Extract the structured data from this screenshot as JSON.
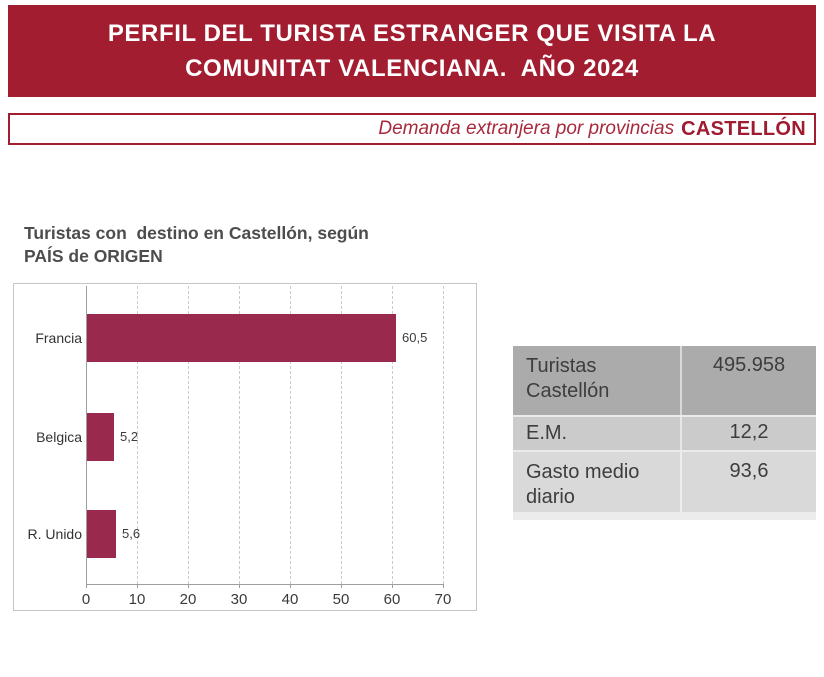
{
  "header": {
    "line1": "PERFIL DEL TURISTA ESTRANGER QUE VISITA LA",
    "line2": "COMUNITAT VALENCIANA.  AÑO 2024"
  },
  "subtitle": {
    "italic_text": "Demanda extranjera por provincias",
    "bold_text": "CASTELLÓN"
  },
  "chart": {
    "title": "Turistas con  destino en Castellón, según\nPAÍS de ORIGEN"
  },
  "chart_data": {
    "type": "bar",
    "orientation": "horizontal",
    "title": "Turistas con  destino en Castellón, según PAÍS de ORIGEN",
    "categories": [
      "Francia",
      "Belgica",
      "R. Unido"
    ],
    "values": [
      60.5,
      5.2,
      5.6
    ],
    "value_labels": [
      "60,5",
      "5,2",
      "5,6"
    ],
    "xlabel": "",
    "ylabel": "",
    "xlim": [
      0,
      70
    ],
    "xticks": [
      0,
      10,
      20,
      30,
      40,
      50,
      60,
      70
    ],
    "grid": "vertical-dashed",
    "legend": "none",
    "bar_color": "#9A2A4D"
  },
  "summary_table": {
    "rows": [
      {
        "label": "Turistas Castellón",
        "value": "495.958",
        "bg": "#ABABAB"
      },
      {
        "label": "E.M.",
        "value": "12,2",
        "bg": "#CBCBCB"
      },
      {
        "label": "Gasto medio diario",
        "value": "93,6",
        "bg": "#D9D9D9"
      }
    ]
  },
  "colors": {
    "brand_red": "#A21D30",
    "subtitle_italic_red": "#A8293C",
    "subtitle_bold_red": "#9E1B30",
    "bar_maroon": "#9A2A4D",
    "title_gray": "#4D4D4D",
    "table_text_gray": "#3D3D3D",
    "table_row1_bg": "#ABABAB",
    "table_row2_bg": "#CBCBCB",
    "table_row3_bg": "#D9D9D9"
  }
}
